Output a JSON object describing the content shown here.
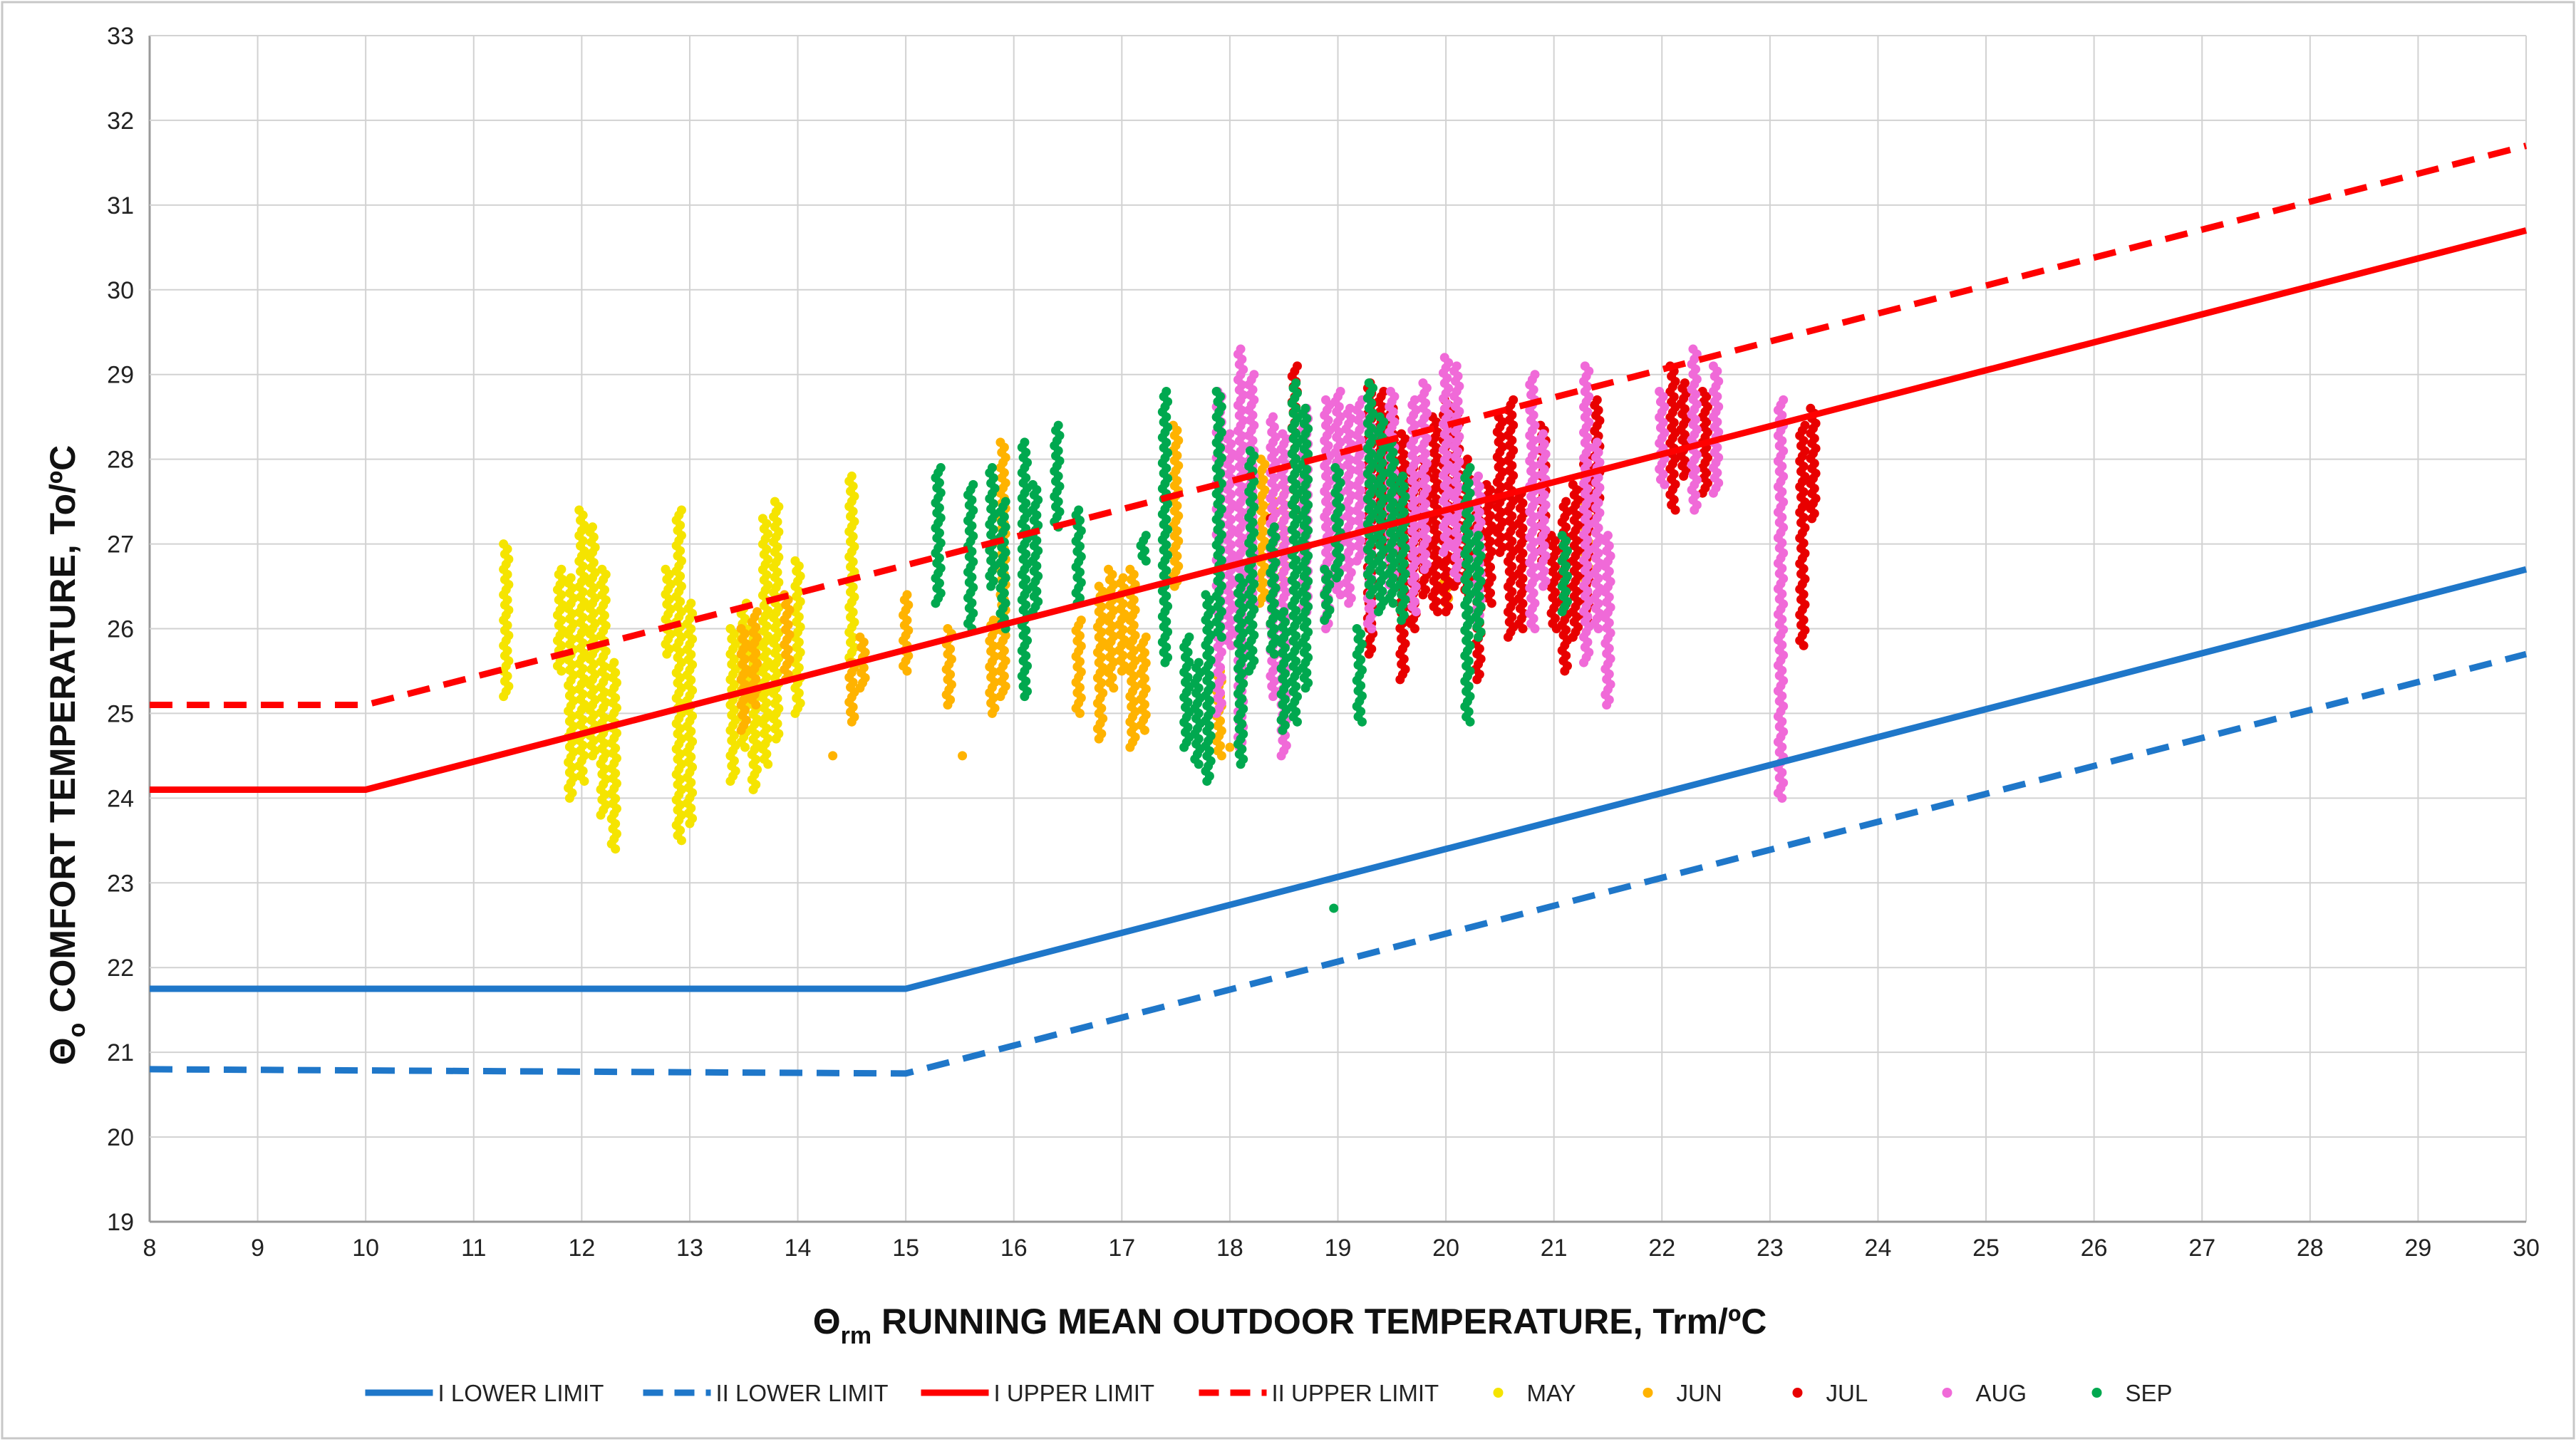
{
  "chart_data": {
    "type": "scatter",
    "title": "",
    "xlabel": {
      "symbol": "Θ",
      "sub": "rm",
      "text": " RUNNING MEAN OUTDOOR TEMPERATURE, Trm/ºC"
    },
    "ylabel": {
      "symbol": "Θ",
      "sub": "o",
      "text": " COMFORT TEMPERATURE, To/ºC"
    },
    "xlim": [
      8,
      30
    ],
    "ylim": [
      19,
      33
    ],
    "x_ticks": [
      8,
      9,
      10,
      11,
      12,
      13,
      14,
      15,
      16,
      17,
      18,
      19,
      20,
      21,
      22,
      23,
      24,
      25,
      26,
      27,
      28,
      29,
      30
    ],
    "y_ticks": [
      19,
      20,
      21,
      22,
      23,
      24,
      25,
      26,
      27,
      28,
      29,
      30,
      31,
      32,
      33
    ],
    "grid": true,
    "legend_position": "bottom",
    "lines": [
      {
        "name": "I LOWER LIMIT",
        "color": "#1f77c9",
        "style": "solid",
        "points": [
          [
            8,
            21.75
          ],
          [
            15,
            21.75
          ],
          [
            30,
            26.7
          ]
        ]
      },
      {
        "name": "II LOWER LIMIT",
        "color": "#1f77c9",
        "style": "dashed",
        "points": [
          [
            8,
            20.8
          ],
          [
            15,
            20.75
          ],
          [
            30,
            25.7
          ]
        ]
      },
      {
        "name": "I UPPER LIMIT",
        "color": "#ff0000",
        "style": "solid",
        "points": [
          [
            8,
            24.1
          ],
          [
            10,
            24.1
          ],
          [
            30,
            30.7
          ]
        ]
      },
      {
        "name": "II UPPER LIMIT",
        "color": "#ff0000",
        "style": "dashed",
        "points": [
          [
            8,
            25.1
          ],
          [
            10,
            25.1
          ],
          [
            30,
            31.7
          ]
        ]
      }
    ],
    "scatter_series": [
      {
        "name": "MAY",
        "color": "#f5e400",
        "clusters": [
          [
            11.3,
            25.2,
            27.0
          ],
          [
            11.8,
            25.5,
            26.7
          ],
          [
            11.9,
            24.0,
            26.6
          ],
          [
            12.0,
            24.2,
            27.4
          ],
          [
            12.1,
            24.5,
            27.2
          ],
          [
            12.2,
            23.8,
            26.7
          ],
          [
            12.3,
            23.4,
            25.6
          ],
          [
            12.8,
            25.7,
            26.7
          ],
          [
            12.9,
            23.5,
            27.4
          ],
          [
            13.0,
            23.7,
            26.3
          ],
          [
            13.4,
            24.2,
            26.0
          ],
          [
            13.5,
            24.6,
            26.3
          ],
          [
            13.6,
            24.1,
            26.0
          ],
          [
            13.7,
            24.4,
            27.3
          ],
          [
            13.8,
            24.7,
            27.5
          ],
          [
            14.0,
            25.0,
            26.8
          ],
          [
            14.5,
            25.6,
            27.8
          ]
        ]
      },
      {
        "name": "JUN",
        "color": "#ffb300",
        "clusters": [
          [
            13.5,
            24.8,
            26.0
          ],
          [
            13.6,
            25.1,
            26.2
          ],
          [
            13.9,
            25.4,
            26.4
          ],
          [
            14.3,
            24.5,
            24.5
          ],
          [
            14.5,
            24.9,
            25.6
          ],
          [
            14.6,
            25.3,
            25.9
          ],
          [
            15.0,
            25.5,
            26.4
          ],
          [
            15.4,
            25.1,
            26.0
          ],
          [
            15.5,
            24.5,
            24.5
          ],
          [
            15.8,
            25.0,
            26.1
          ],
          [
            15.9,
            25.2,
            28.2
          ],
          [
            16.6,
            25.0,
            26.1
          ],
          [
            16.8,
            24.7,
            26.5
          ],
          [
            16.9,
            25.3,
            26.7
          ],
          [
            17.0,
            25.5,
            26.6
          ],
          [
            17.1,
            24.6,
            26.7
          ],
          [
            17.2,
            24.8,
            25.9
          ],
          [
            17.5,
            26.5,
            28.4
          ],
          [
            17.9,
            24.5,
            25.5
          ],
          [
            18.0,
            24.6,
            24.6
          ],
          [
            18.3,
            26.3,
            28.0
          ],
          [
            18.4,
            26.0,
            27.5
          ],
          [
            18.5,
            26.5,
            27.7
          ],
          [
            19.7,
            26.9,
            26.9
          ],
          [
            20.0,
            26.3,
            26.6
          ],
          [
            21.3,
            26.6,
            27.8
          ]
        ]
      },
      {
        "name": "JUL",
        "color": "#e80000",
        "clusters": [
          [
            18.4,
            27.3,
            27.3
          ],
          [
            18.6,
            27.4,
            29.1
          ],
          [
            19.3,
            25.7,
            28.9
          ],
          [
            19.4,
            27.0,
            28.8
          ],
          [
            19.5,
            26.6,
            28.6
          ],
          [
            19.6,
            25.4,
            28.3
          ],
          [
            19.7,
            26.0,
            27.9
          ],
          [
            19.8,
            26.4,
            28.0
          ],
          [
            19.9,
            26.2,
            28.5
          ],
          [
            20.0,
            26.2,
            28.7
          ],
          [
            20.1,
            26.5,
            28.6
          ],
          [
            20.2,
            26.4,
            28.0
          ],
          [
            20.3,
            25.4,
            27.4
          ],
          [
            20.4,
            26.3,
            27.7
          ],
          [
            20.5,
            26.9,
            28.5
          ],
          [
            20.6,
            25.9,
            28.7
          ],
          [
            20.7,
            26.0,
            27.6
          ],
          [
            20.9,
            26.8,
            28.4
          ],
          [
            21.0,
            26.0,
            27.1
          ],
          [
            21.1,
            25.5,
            27.5
          ],
          [
            21.2,
            25.9,
            27.7
          ],
          [
            21.3,
            26.1,
            28.0
          ],
          [
            21.4,
            27.3,
            28.7
          ],
          [
            22.1,
            27.4,
            29.1
          ],
          [
            22.2,
            27.8,
            28.9
          ],
          [
            22.4,
            27.6,
            28.8
          ],
          [
            23.3,
            25.8,
            28.4
          ],
          [
            23.4,
            27.3,
            28.6
          ]
        ]
      },
      {
        "name": "AUG",
        "color": "#f06ad8",
        "clusters": [
          [
            17.9,
            25.0,
            28.8
          ],
          [
            18.0,
            25.8,
            28.3
          ],
          [
            18.1,
            24.6,
            29.3
          ],
          [
            18.2,
            26.3,
            29.0
          ],
          [
            18.4,
            25.2,
            28.5
          ],
          [
            18.5,
            24.5,
            28.3
          ],
          [
            18.7,
            26.2,
            28.6
          ],
          [
            18.9,
            26.0,
            28.7
          ],
          [
            19.0,
            26.4,
            28.8
          ],
          [
            19.1,
            26.3,
            28.6
          ],
          [
            19.2,
            26.8,
            28.7
          ],
          [
            19.3,
            26.0,
            28.5
          ],
          [
            19.5,
            26.4,
            28.8
          ],
          [
            19.7,
            26.2,
            28.7
          ],
          [
            19.8,
            26.7,
            28.9
          ],
          [
            20.0,
            26.9,
            29.2
          ],
          [
            20.1,
            26.6,
            29.1
          ],
          [
            20.3,
            26.1,
            27.8
          ],
          [
            20.8,
            26.0,
            29.0
          ],
          [
            20.9,
            26.5,
            28.3
          ],
          [
            21.3,
            25.6,
            29.1
          ],
          [
            21.4,
            26.0,
            28.2
          ],
          [
            21.5,
            25.1,
            27.1
          ],
          [
            22.0,
            27.7,
            28.8
          ],
          [
            22.3,
            27.4,
            29.3
          ],
          [
            22.5,
            27.6,
            29.1
          ],
          [
            23.1,
            24.0,
            28.7
          ]
        ]
      },
      {
        "name": "SEP",
        "color": "#00a84f",
        "clusters": [
          [
            15.3,
            26.3,
            27.9
          ],
          [
            15.6,
            26.0,
            27.7
          ],
          [
            15.8,
            26.5,
            27.9
          ],
          [
            15.9,
            26.0,
            27.5
          ],
          [
            16.1,
            25.2,
            28.2
          ],
          [
            16.2,
            26.2,
            27.7
          ],
          [
            16.4,
            27.2,
            28.4
          ],
          [
            16.6,
            26.3,
            27.4
          ],
          [
            17.2,
            26.8,
            27.1
          ],
          [
            17.4,
            25.6,
            28.8
          ],
          [
            17.6,
            24.6,
            25.9
          ],
          [
            17.7,
            24.4,
            25.6
          ],
          [
            17.8,
            24.2,
            26.4
          ],
          [
            17.9,
            25.9,
            28.8
          ],
          [
            18.1,
            24.4,
            26.6
          ],
          [
            18.2,
            25.5,
            28.1
          ],
          [
            18.4,
            25.7,
            27.2
          ],
          [
            18.5,
            24.8,
            26.2
          ],
          [
            18.6,
            24.9,
            28.9
          ],
          [
            18.7,
            25.3,
            28.6
          ],
          [
            18.9,
            26.1,
            26.7
          ],
          [
            18.95,
            22.7,
            22.7
          ],
          [
            19.0,
            26.6,
            27.9
          ],
          [
            19.2,
            24.9,
            26.0
          ],
          [
            19.3,
            26.4,
            28.9
          ],
          [
            19.4,
            26.2,
            28.5
          ],
          [
            19.5,
            26.3,
            28.2
          ],
          [
            19.6,
            26.1,
            27.8
          ],
          [
            20.2,
            24.9,
            27.9
          ],
          [
            20.3,
            25.9,
            27.1
          ],
          [
            21.1,
            26.2,
            27.1
          ]
        ]
      }
    ]
  }
}
